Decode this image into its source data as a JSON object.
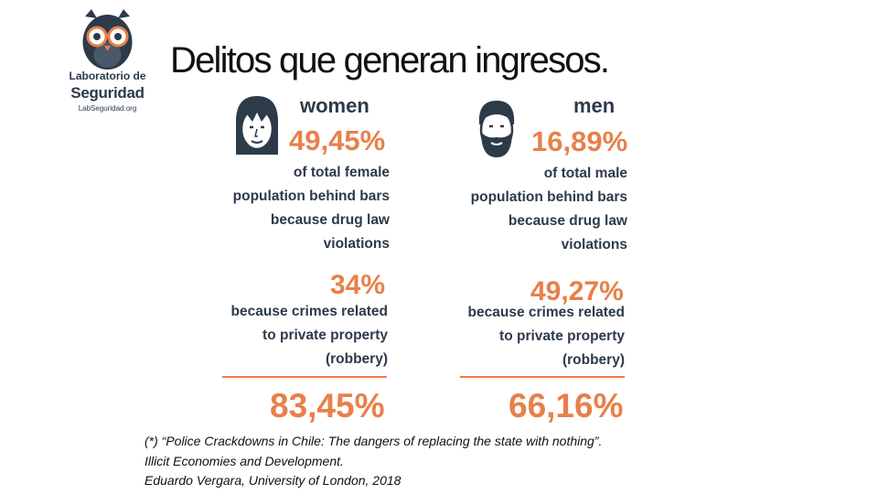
{
  "title": "Delitos que generan ingresos.",
  "logo": {
    "line1": "Laboratorio de",
    "line2": "Seguridad",
    "url": "LabSeguridad.org"
  },
  "women": {
    "label": "women",
    "drug_pct": "49,45%",
    "drug_desc": [
      "of total female",
      "population behind bars",
      "because drug law",
      "violations"
    ],
    "property_pct": "34%",
    "property_desc": [
      "because crimes related",
      "to private property",
      "(robbery)"
    ],
    "total_pct": "83,45%"
  },
  "men": {
    "label": "men",
    "drug_pct": "16,89%",
    "drug_desc": [
      "of total male",
      "population behind bars",
      "because drug law",
      "violations"
    ],
    "property_pct": "49,27%",
    "property_desc": [
      "because crimes related",
      "to private property",
      "(robbery)"
    ],
    "total_pct": "66,16%"
  },
  "citation": [
    "(*) “Police Crackdowns in Chile: The dangers of replacing the state with nothing”.",
    "Illicit Economies and Development.",
    "Eduardo Vergara, University of London, 2018"
  ],
  "colors": {
    "accent": "#e8804a",
    "text": "#2d3a4a"
  },
  "icons": {
    "logo": "owl-glasses-icon",
    "women": "woman-face-icon",
    "men": "man-beard-face-icon"
  }
}
